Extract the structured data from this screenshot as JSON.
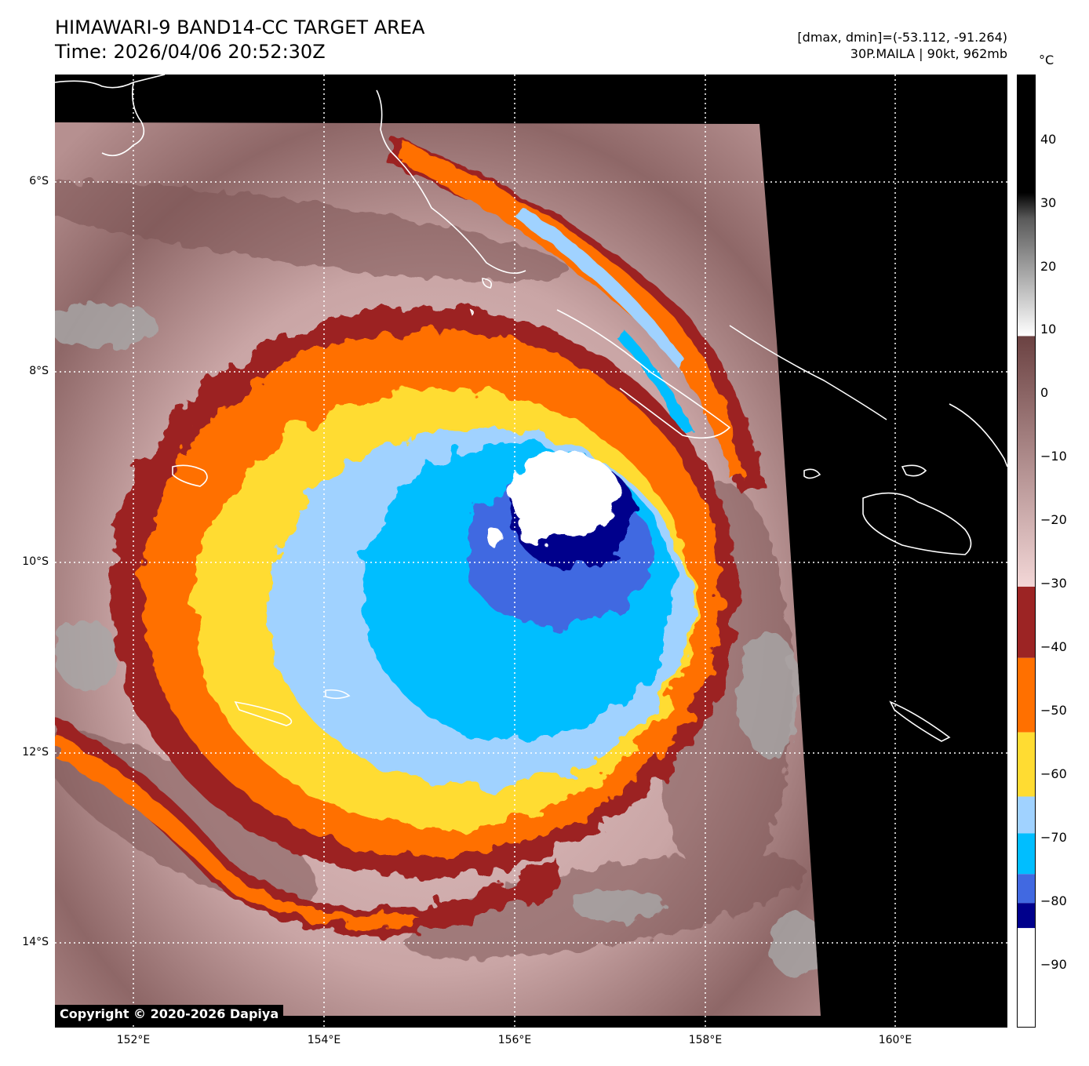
{
  "header": {
    "title": "HIMAWARI-9 BAND14-CC TARGET AREA",
    "time": "Time: 2026/04/06 20:52:30Z",
    "range": "[dmax, dmin]=(-53.112, -91.264)",
    "storm": "30P.MAILA | 90kt, 962mb"
  },
  "map": {
    "lat_labels": [
      "6°S",
      "8°S",
      "10°S",
      "12°S",
      "14°S"
    ],
    "lon_labels": [
      "152°E",
      "154°E",
      "156°E",
      "158°E",
      "160°E"
    ],
    "copyright": "Copyright © 2020-2026 Dapiya"
  },
  "colorbar": {
    "unit": "°C",
    "tick_labels": [
      "40",
      "30",
      "20",
      "10",
      "0",
      "−10",
      "−20",
      "−30",
      "−40",
      "−50",
      "−60",
      "−70",
      "−80",
      "−90"
    ],
    "palette": {
      "warm_black": "#000000",
      "gray": "#9a9a9a",
      "white": "#ffffff",
      "brown": "#6b4242",
      "pink": "#f3d7d7",
      "dark_red": "#9c2424",
      "orange": "#ff7000",
      "yellow": "#ffdc32",
      "light_blue": "#a0d2ff",
      "cyan": "#00beff",
      "royal_blue": "#4169e1",
      "navy": "#00008c",
      "cold_white": "#ffffff"
    }
  }
}
